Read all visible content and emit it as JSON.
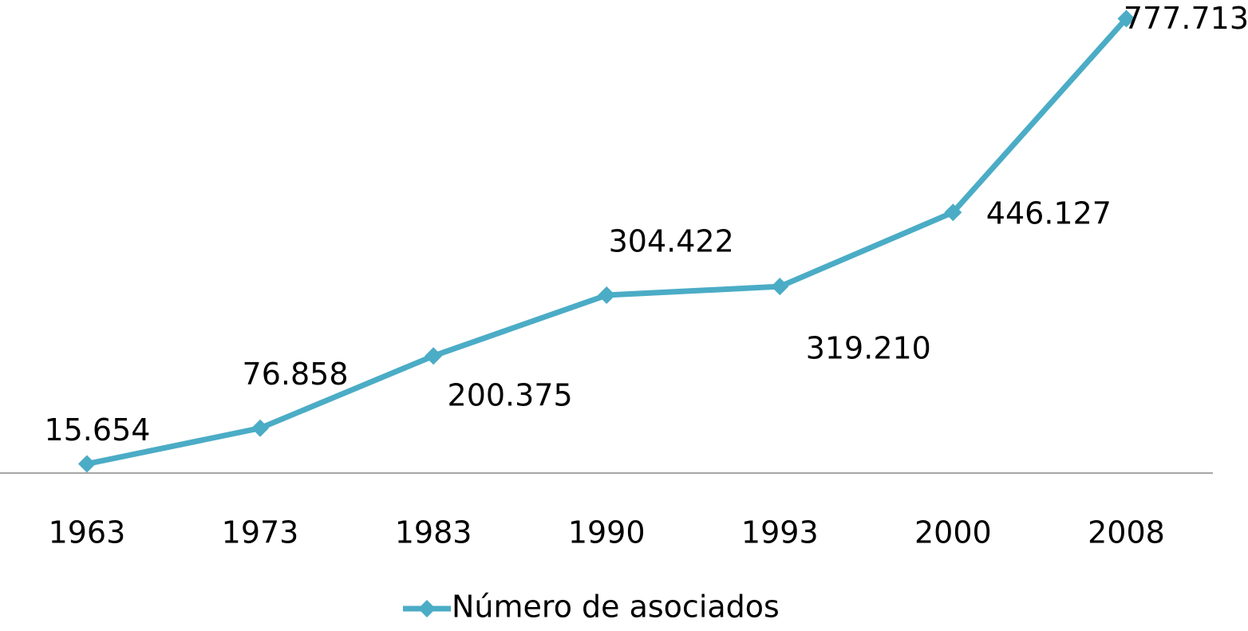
{
  "chart_data": {
    "type": "line",
    "categories": [
      "1963",
      "1973",
      "1983",
      "1990",
      "1993",
      "2000",
      "2008"
    ],
    "series": [
      {
        "name": "Número de asociados",
        "color": "#4bacc6",
        "values": [
          15654,
          76858,
          200375,
          304422,
          319210,
          446127,
          777713
        ],
        "value_labels": [
          "15.654",
          "76.858",
          "200.375",
          "304.422",
          "319.210",
          "446.127",
          "777.713"
        ]
      }
    ],
    "ylim": [
      0,
      800000
    ],
    "legend": "bottom"
  }
}
